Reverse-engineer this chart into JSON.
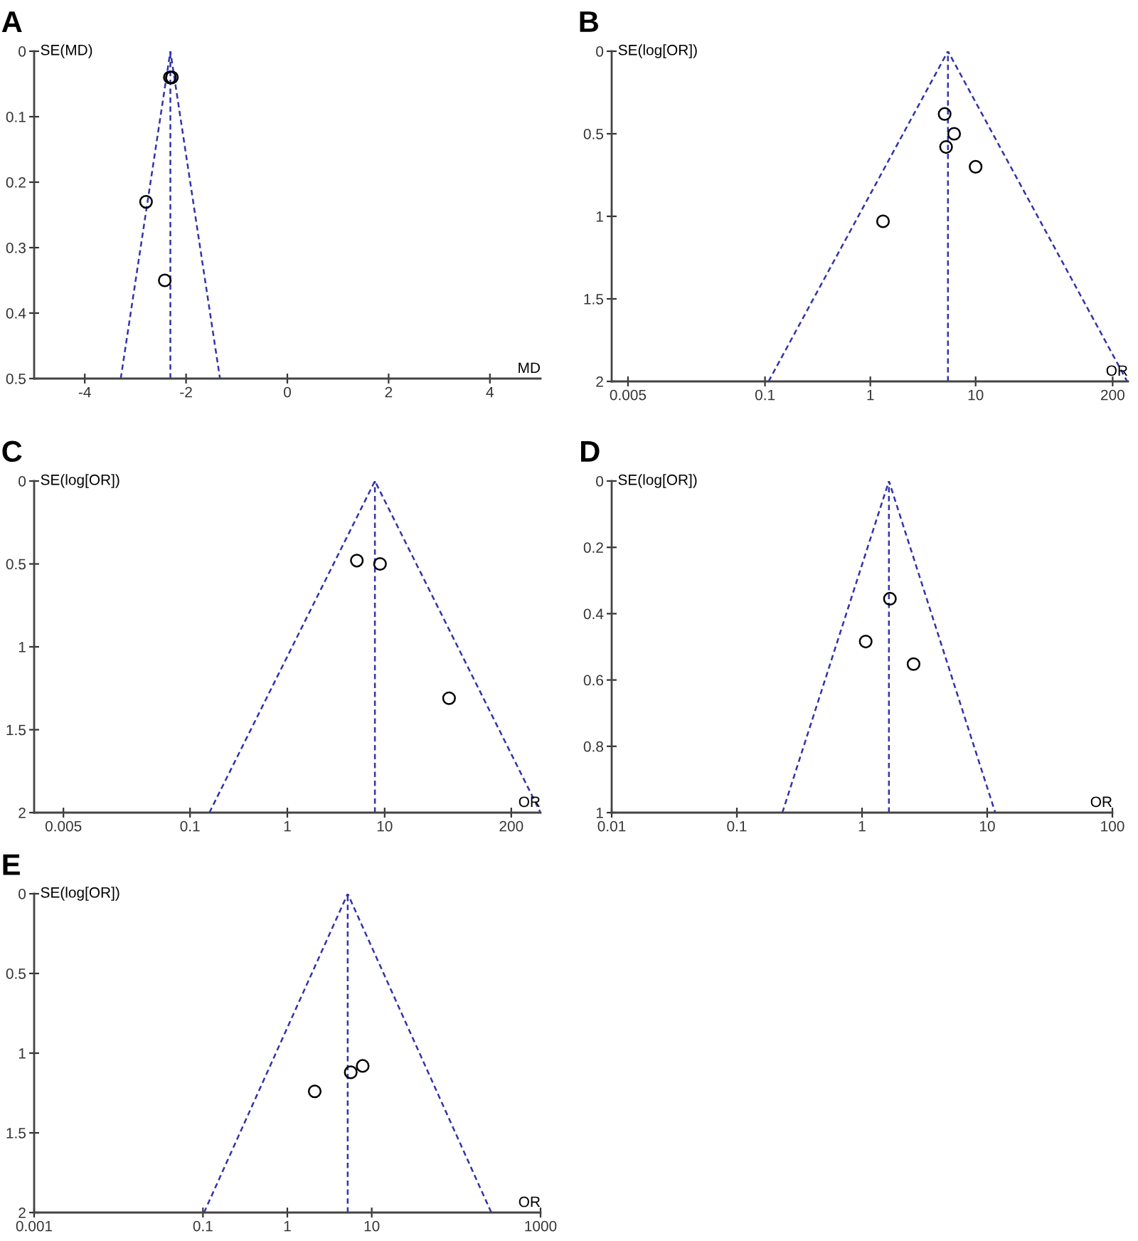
{
  "chart_data": [
    {
      "type": "scatter",
      "title": "A",
      "xlabel": "MD",
      "ylabel": "SE(MD)",
      "xlim": [
        -5,
        5
      ],
      "ylim": [
        0.5,
        0
      ],
      "xticks": [
        -4,
        -2,
        0,
        2,
        4
      ],
      "yticks": [
        0,
        0.1,
        0.2,
        0.3,
        0.4,
        0.5
      ],
      "ref_lines": [
        {
          "axis": "x",
          "value": -2.31,
          "color": "#3333aa",
          "line_style": "dashed"
        }
      ],
      "series": [
        {
          "type": "line",
          "color": "#3333aa",
          "line_style": "dashed",
          "x": [
            -3.29,
            -2.31,
            -1.33
          ],
          "values": [
            0.5,
            0,
            0.5
          ]
        },
        {
          "marker": "circle",
          "color": "#000000",
          "x": [
            -2.32,
            -2.28,
            -2.79,
            -2.42
          ],
          "values": [
            0.04,
            0.04,
            0.23,
            0.35
          ]
        }
      ]
    },
    {
      "type": "scatter",
      "title": "B",
      "xlabel": "OR",
      "ylabel": "SE(log[OR])",
      "log": "x",
      "xlim": [
        0.0035,
        280
      ],
      "ylim": [
        2,
        0
      ],
      "xticks": [
        0.005,
        0.1,
        1,
        10,
        200
      ],
      "yticks": [
        0,
        0.5,
        1,
        1.5,
        2
      ],
      "ref_lines": [
        {
          "axis": "x",
          "value": 5.46,
          "color": "#3333aa",
          "line_style": "dashed"
        }
      ],
      "series": [
        {
          "type": "line",
          "color": "#3333aa",
          "line_style": "dashed",
          "x": [
            0.108,
            5.46,
            275
          ],
          "values": [
            2,
            0,
            2
          ]
        },
        {
          "marker": "circle",
          "color": "#000000",
          "x": [
            5.08,
            6.25,
            5.24,
            10.0,
            1.32
          ],
          "values": [
            0.38,
            0.5,
            0.58,
            0.7,
            1.03
          ]
        }
      ]
    },
    {
      "type": "scatter",
      "title": "C",
      "xlabel": "OR",
      "ylabel": "SE(log[OR])",
      "log": "x",
      "xlim": [
        0.0025,
        400
      ],
      "ylim": [
        2,
        0
      ],
      "xticks": [
        0.005,
        0.1,
        1,
        10,
        200
      ],
      "yticks": [
        0,
        0.5,
        1,
        1.5,
        2
      ],
      "ref_lines": [
        {
          "axis": "x",
          "value": 7.94,
          "color": "#3333aa",
          "line_style": "dashed"
        }
      ],
      "series": [
        {
          "type": "line",
          "color": "#3333aa",
          "line_style": "dashed",
          "x": [
            0.158,
            7.94,
            400
          ],
          "values": [
            2,
            0,
            2
          ]
        },
        {
          "marker": "circle",
          "color": "#000000",
          "x": [
            5.18,
            8.96,
            45.9
          ],
          "values": [
            0.48,
            0.5,
            1.31
          ]
        }
      ]
    },
    {
      "type": "scatter",
      "title": "D",
      "xlabel": "OR",
      "ylabel": "SE(log[OR])",
      "log": "x",
      "xlim": [
        0.01,
        100
      ],
      "ylim": [
        1,
        0
      ],
      "xticks": [
        0.01,
        0.1,
        1,
        10,
        100
      ],
      "yticks": [
        0,
        0.2,
        0.4,
        0.6,
        0.8,
        1
      ],
      "ref_lines": [
        {
          "axis": "x",
          "value": 1.64,
          "color": "#3333aa",
          "line_style": "dashed"
        }
      ],
      "series": [
        {
          "type": "line",
          "color": "#3333aa",
          "line_style": "dashed",
          "x": [
            0.231,
            1.64,
            11.6
          ],
          "values": [
            1,
            0,
            1
          ]
        },
        {
          "marker": "circle",
          "color": "#000000",
          "x": [
            1.67,
            1.07,
            2.58
          ],
          "values": [
            0.355,
            0.484,
            0.552
          ]
        }
      ]
    },
    {
      "type": "scatter",
      "title": "E",
      "xlabel": "OR",
      "ylabel": "SE(log[OR])",
      "log": "x",
      "xlim": [
        0.001,
        1000
      ],
      "ylim": [
        2,
        0
      ],
      "xticks": [
        0.001,
        0.1,
        1,
        10,
        1000
      ],
      "yticks": [
        0,
        0.5,
        1,
        1.5,
        2
      ],
      "ref_lines": [
        {
          "axis": "x",
          "value": 5.19,
          "color": "#3333aa",
          "line_style": "dashed"
        }
      ],
      "series": [
        {
          "type": "line",
          "color": "#3333aa",
          "line_style": "dashed",
          "x": [
            0.103,
            5.19,
            261
          ],
          "values": [
            2,
            0,
            2
          ]
        },
        {
          "marker": "circle",
          "color": "#000000",
          "x": [
            5.64,
            7.81,
            2.11
          ],
          "values": [
            1.12,
            1.08,
            1.24
          ]
        }
      ]
    }
  ]
}
